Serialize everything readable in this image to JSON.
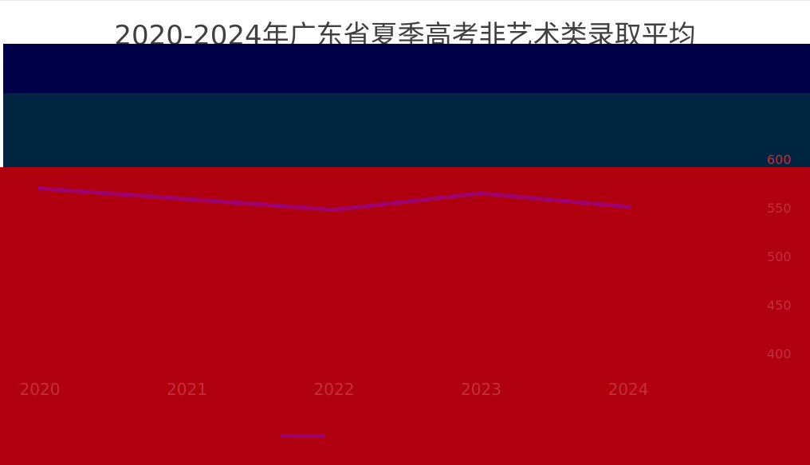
{
  "chart_data": {
    "type": "line",
    "title_line1": "2020-2024年广东省夏季高考非艺术类录取平均",
    "title_line2": "",
    "categories": [
      "2020",
      "2021",
      "2022",
      "2023",
      "2024"
    ],
    "series": [
      {
        "name": "",
        "values": [
          570,
          559,
          548,
          565,
          551
        ]
      }
    ],
    "ylim": [
      400,
      600
    ],
    "yticks": [
      400,
      450,
      500,
      550,
      600
    ],
    "legend_position": "bottom",
    "colors": {
      "line": "#a0006e",
      "band_navy": "#000048",
      "band_teal": "#002540",
      "band_red": "#b0000f"
    }
  }
}
